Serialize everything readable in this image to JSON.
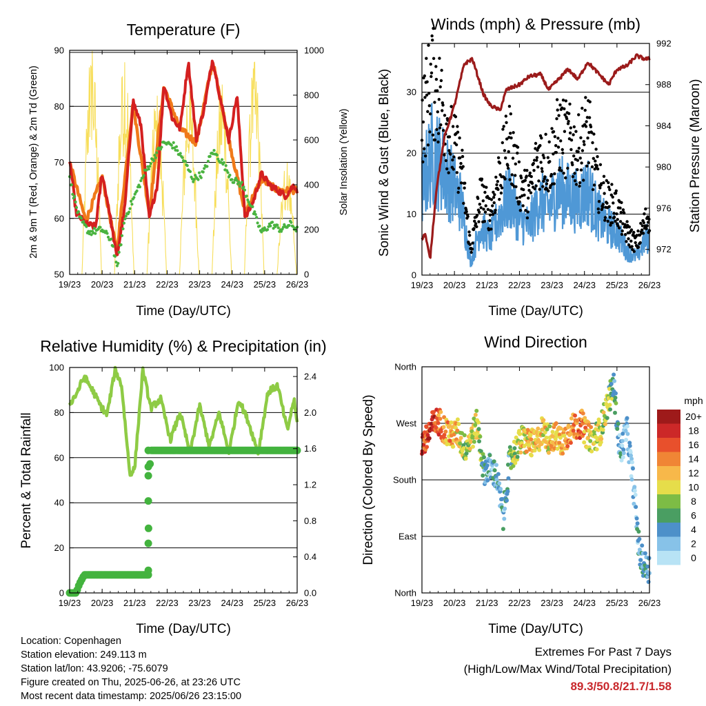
{
  "chart_data": [
    {
      "type": "line",
      "title": "Temperature (F)",
      "xlabel": "Time (Day/UTC)",
      "ylabel": "2m & 9m T (Red, Orange) & 2m Td (Green)",
      "ylabel_right": "Solar Insolation (Yellow)",
      "x_ticks": [
        "19/23",
        "20/23",
        "21/23",
        "22/23",
        "23/23",
        "24/23",
        "25/23",
        "26/23"
      ],
      "ylim": [
        50,
        90
      ],
      "y_ticks": [
        50,
        60,
        70,
        80,
        90
      ],
      "ylim_right": [
        0,
        1000
      ],
      "y_ticks_right": [
        0,
        200,
        400,
        600,
        800,
        1000
      ],
      "grid": true,
      "colors": {
        "temp_2m": "#d42020",
        "temp_9m": "#f07a1a",
        "dewpoint": "#4ab340",
        "solar": "#f7de5a"
      },
      "series": [
        {
          "name": "2m T",
          "x": [
            0,
            0.2,
            0.5,
            0.8,
            1.0,
            1.2,
            1.45,
            1.7,
            1.95,
            2.2,
            2.45,
            2.7,
            2.9,
            3.15,
            3.4,
            3.65,
            3.9,
            4.15,
            4.4,
            4.65,
            4.9,
            5.15,
            5.4,
            5.65,
            5.9,
            6.15,
            6.4,
            6.65,
            6.9,
            7.0
          ],
          "values": [
            70.5,
            61,
            59,
            58.5,
            68,
            62,
            53,
            62,
            81,
            76.5,
            60,
            66,
            84,
            78,
            76,
            88,
            74,
            80,
            88.5,
            81,
            74,
            82,
            60,
            63,
            68,
            66,
            65,
            64,
            66,
            65
          ]
        },
        {
          "name": "9m T",
          "x": [
            0,
            0.5,
            1.0,
            1.45,
            1.95,
            2.45,
            2.9,
            3.4,
            3.9,
            4.4,
            4.9,
            5.4,
            5.9,
            6.4,
            7.0
          ],
          "values": [
            70,
            59.5,
            67.5,
            54,
            80.5,
            61,
            83.5,
            76,
            73.5,
            88,
            74,
            61,
            67,
            65,
            65
          ]
        },
        {
          "name": "2m Td",
          "x": [
            0,
            0.3,
            0.6,
            1.0,
            1.3,
            1.45,
            1.7,
            2.0,
            2.3,
            2.6,
            2.9,
            3.2,
            3.5,
            3.8,
            4.1,
            4.4,
            4.7,
            5.0,
            5.3,
            5.6,
            5.9,
            6.2,
            6.5,
            6.8,
            7.0
          ],
          "values": [
            67,
            60,
            57.5,
            58,
            56,
            51,
            60,
            64,
            68,
            71,
            73.5,
            73,
            70.5,
            67,
            68,
            72,
            70,
            67,
            66,
            62,
            57.5,
            59,
            58,
            59,
            58
          ]
        },
        {
          "name": "Solar Insolation",
          "axis": "right",
          "peaks_x": [
            0.68,
            1.68,
            2.68,
            3.68,
            4.68,
            5.68,
            6.68
          ],
          "peaks": [
            1000,
            950,
            800,
            820,
            850,
            950,
            500
          ]
        }
      ]
    },
    {
      "type": "line",
      "title": "Winds (mph) & Pressure (mb)",
      "xlabel": "Time (Day/UTC)",
      "ylabel": "Sonic Wind & Gust (Blue, Black)",
      "ylabel_right": "Station Pressure (Maroon)",
      "x_ticks": [
        "19/23",
        "20/23",
        "21/23",
        "22/23",
        "23/23",
        "24/23",
        "25/23",
        "26/23"
      ],
      "ylim": [
        0,
        38
      ],
      "y_ticks": [
        0,
        10,
        20,
        30
      ],
      "ylim_right": [
        969.5,
        992
      ],
      "y_ticks_right": [
        972,
        976,
        980,
        984,
        988,
        992
      ],
      "grid": true,
      "colors": {
        "wind": "#4f98d6",
        "gust": "#000000",
        "pressure": "#9b1b1b"
      },
      "series": [
        {
          "name": "Sonic Wind",
          "x": [
            0,
            0.3,
            0.6,
            0.9,
            1.2,
            1.5,
            1.8,
            2.1,
            2.4,
            2.7,
            3.0,
            3.3,
            3.6,
            3.9,
            4.2,
            4.5,
            4.8,
            5.1,
            5.4,
            5.7,
            6.0,
            6.3,
            6.6,
            6.9,
            7.0
          ],
          "values": [
            14,
            20,
            18,
            15,
            12,
            2,
            8,
            6,
            10,
            13,
            9,
            8,
            12,
            11,
            14,
            13,
            12,
            14,
            10,
            8,
            7,
            4,
            3,
            6,
            6
          ]
        },
        {
          "name": "Sonic Gust",
          "x": [
            0,
            0.3,
            0.6,
            0.9,
            1.2,
            1.5,
            1.8,
            2.1,
            2.4,
            2.7,
            3.0,
            3.3,
            3.6,
            3.9,
            4.2,
            4.5,
            4.8,
            5.1,
            5.4,
            5.7,
            6.0,
            6.3,
            6.6,
            6.9,
            7.0
          ],
          "values": [
            25,
            32,
            28,
            22,
            18,
            4,
            13,
            10,
            17,
            22,
            15,
            13,
            20,
            18,
            23,
            22,
            20,
            24,
            15,
            12,
            11,
            7,
            5,
            9,
            10
          ]
        },
        {
          "name": "Station Pressure",
          "axis": "right",
          "x": [
            0,
            0.1,
            0.25,
            0.45,
            0.7,
            1.0,
            1.3,
            1.55,
            1.9,
            2.1,
            2.4,
            2.6,
            3.0,
            3.3,
            3.65,
            3.9,
            4.2,
            4.5,
            4.8,
            5.1,
            5.45,
            5.75,
            6.0,
            6.3,
            6.6,
            6.85,
            7.0
          ],
          "values": [
            973,
            973.5,
            971,
            978,
            983,
            986,
            990,
            990.5,
            987,
            986,
            985.5,
            987.5,
            988,
            988.8,
            989,
            987.5,
            988.5,
            989.5,
            988.5,
            990.2,
            989,
            988,
            989.5,
            989.8,
            990.8,
            990.5,
            990.5
          ]
        }
      ]
    },
    {
      "type": "line",
      "title": "Relative Humidity (%) & Precipitation (in)",
      "xlabel": "Time (Day/UTC)",
      "ylabel": "Percent & Total Rainfall",
      "x_ticks": [
        "19/23",
        "20/23",
        "21/23",
        "22/23",
        "23/23",
        "24/23",
        "25/23",
        "26/23"
      ],
      "ylim": [
        0,
        100
      ],
      "y_ticks": [
        0,
        20,
        40,
        60,
        80,
        100
      ],
      "ylim_right": [
        0,
        2.5
      ],
      "y_ticks_right": [
        "0.0",
        "0.4",
        "0.8",
        "1.2",
        "1.6",
        "2.0",
        "2.4"
      ],
      "grid": true,
      "colors": {
        "humidity": "#8ecb45",
        "precip": "#43b33e"
      },
      "series": [
        {
          "name": "Relative Humidity",
          "x": [
            0,
            0.2,
            0.45,
            0.7,
            0.95,
            1.15,
            1.4,
            1.6,
            1.85,
            2.0,
            2.25,
            2.5,
            2.8,
            3.1,
            3.4,
            3.7,
            4.0,
            4.3,
            4.6,
            4.9,
            5.2,
            5.5,
            5.8,
            6.1,
            6.4,
            6.7,
            6.9,
            7.0
          ],
          "values": [
            84,
            88,
            96,
            90,
            83,
            79,
            99,
            92,
            53,
            55,
            99,
            82,
            86,
            68,
            80,
            62,
            83,
            65,
            80,
            62,
            86,
            76,
            62,
            89,
            92,
            72,
            86,
            75
          ]
        },
        {
          "name": "Total Precipitation",
          "axis": "right",
          "x": [
            0,
            0.2,
            0.3,
            0.45,
            2.4,
            2.42,
            2.45,
            2.5,
            7.0
          ],
          "values": [
            0,
            0,
            0.1,
            0.2,
            0.2,
            0.55,
            1.3,
            1.58,
            1.58
          ]
        }
      ]
    },
    {
      "type": "scatter",
      "title": "Wind Direction",
      "xlabel": "Time (Day/UTC)",
      "ylabel": "Direction (Colored By Speed)",
      "x_ticks": [
        "19/23",
        "20/23",
        "21/23",
        "22/23",
        "23/23",
        "24/23",
        "25/23",
        "26/23"
      ],
      "ylim": [
        0,
        360
      ],
      "y_ticks": [
        "North",
        "East",
        "South",
        "West",
        "North"
      ],
      "grid": true,
      "legend": {
        "title": "mph",
        "labels": [
          "0",
          "2",
          "4",
          "6",
          "8",
          "10",
          "12",
          "14",
          "16",
          "18",
          "20+"
        ],
        "colors": [
          "#b8e3f5",
          "#87c2e8",
          "#4d90c9",
          "#4a9e62",
          "#7dbc45",
          "#e6dd4a",
          "#f7b84a",
          "#f08535",
          "#e8502c",
          "#cc2828",
          "#9e1a1a"
        ]
      },
      "series": [
        {
          "name": "Direction",
          "x": [
            0.1,
            0.3,
            0.5,
            0.7,
            0.9,
            1.1,
            1.3,
            1.5,
            1.7,
            1.9,
            2.1,
            2.3,
            2.5,
            2.7,
            2.9,
            3.1,
            3.3,
            3.5,
            3.7,
            3.9,
            4.1,
            4.3,
            4.5,
            4.7,
            4.9,
            5.1,
            5.3,
            5.5,
            5.7,
            5.9,
            6.1,
            6.3,
            6.5,
            6.7,
            6.9
          ],
          "values": [
            240,
            265,
            275,
            260,
            250,
            255,
            230,
            245,
            270,
            195,
            200,
            185,
            120,
            210,
            230,
            245,
            240,
            235,
            260,
            245,
            250,
            240,
            255,
            265,
            270,
            250,
            245,
            260,
            300,
            330,
            220,
            260,
            175,
            60,
            40
          ],
          "speed": [
            17,
            18,
            15,
            13,
            12,
            11,
            8,
            9,
            10,
            4,
            3,
            4,
            3,
            6,
            9,
            11,
            12,
            11,
            10,
            11,
            12,
            12,
            13,
            14,
            15,
            12,
            9,
            10,
            8,
            6,
            3,
            2,
            2,
            4,
            5
          ]
        }
      ]
    }
  ],
  "footer": {
    "location": "Location: Copenhagen",
    "elevation": "Station elevation: 249.113 m",
    "latlon": "Station lat/lon: 43.9206; -75.6079",
    "created": "Figure created on Thu, 2025-06-26, at 23:26 UTC",
    "recent": "Most recent data timestamp: 2025/06/26 23:15:00"
  },
  "extremes": {
    "title": "Extremes For Past 7 Days",
    "subtitle": "(High/Low/Max Wind/Total Precipitation)",
    "values": "89.3/50.8/21.7/1.58"
  }
}
